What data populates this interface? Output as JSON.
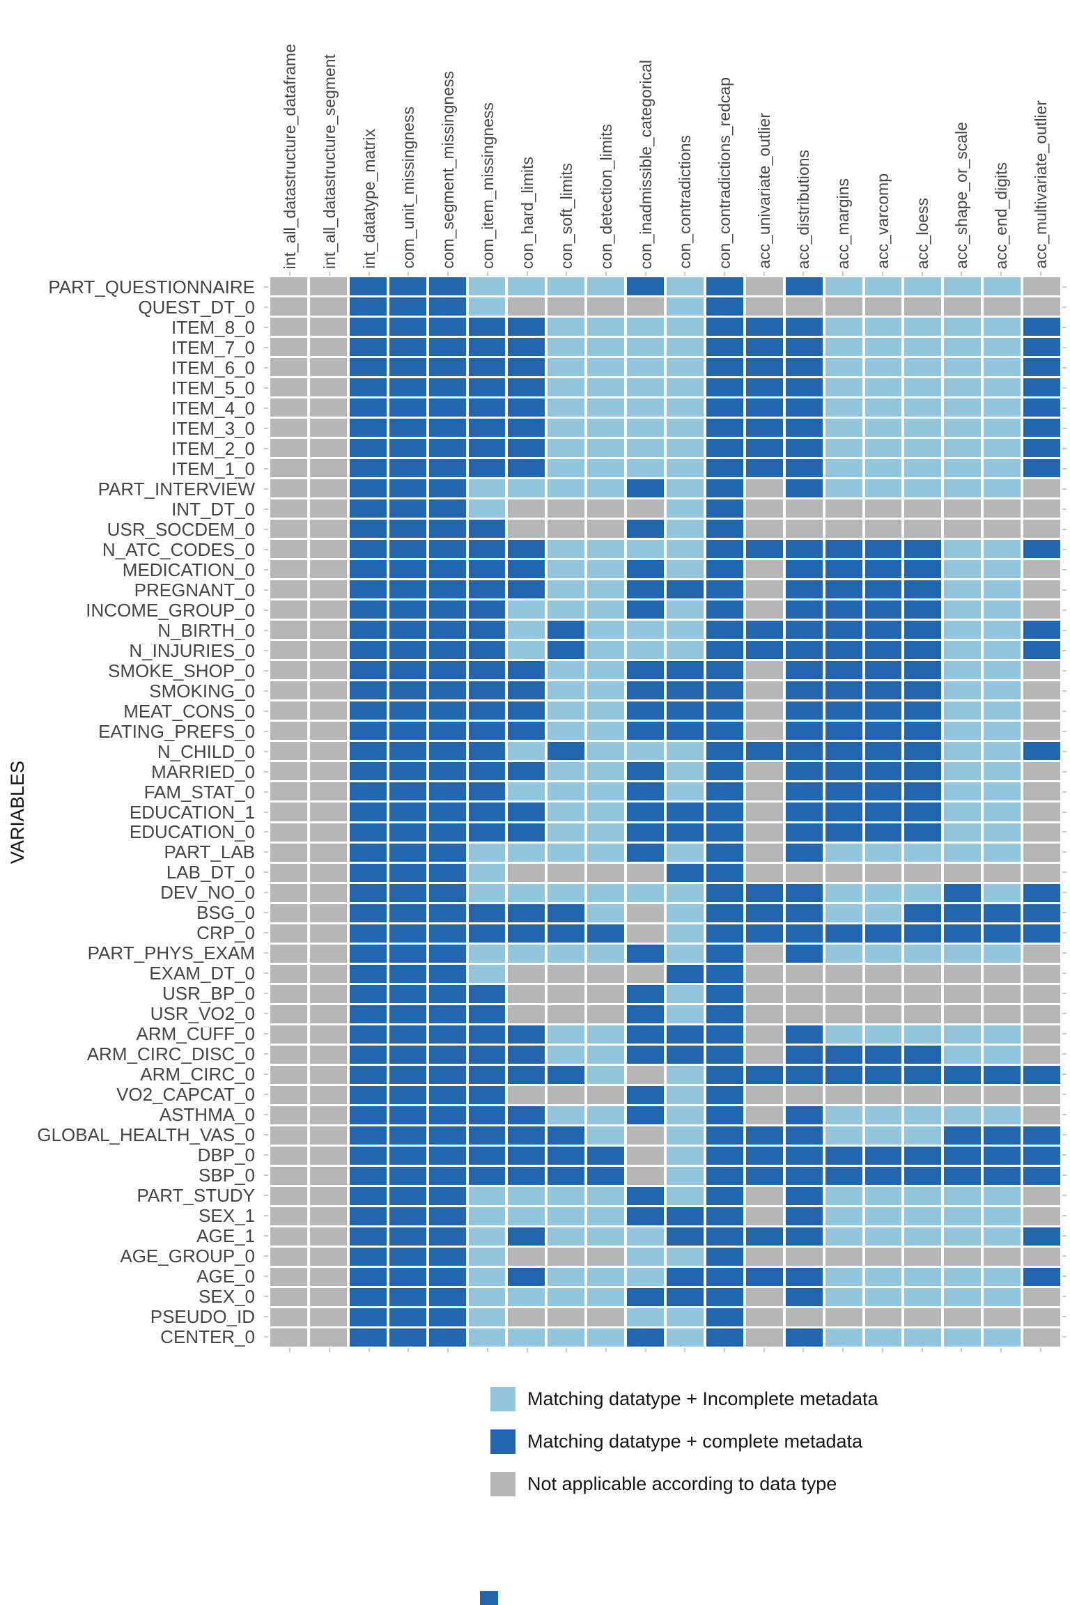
{
  "axis": {
    "y_title": "VARIABLES"
  },
  "chart_data": {
    "type": "heatmap",
    "title": "",
    "xlabel": "",
    "ylabel": "VARIABLES",
    "grid": false,
    "legend_position": "bottom",
    "n_cols": 20,
    "n_rows": 53,
    "columns": [
      "int_all_datastructure_dataframe",
      "int_all_datastructure_segment",
      "int_datatype_matrix",
      "com_unit_missingness",
      "com_segment_missingness",
      "com_item_missingness",
      "con_hard_limits",
      "con_soft_limits",
      "con_detection_limits",
      "con_inadmissible_categorical",
      "con_contradictions",
      "con_contradictions_redcap",
      "acc_univariate_outlier",
      "acc_distributions",
      "acc_margins",
      "acc_varcomp",
      "acc_loess",
      "acc_shape_or_scale",
      "acc_end_digits",
      "acc_multivariate_outlier"
    ],
    "rows": [
      "PART_QUESTIONNAIRE",
      "QUEST_DT_0",
      "ITEM_8_0",
      "ITEM_7_0",
      "ITEM_6_0",
      "ITEM_5_0",
      "ITEM_4_0",
      "ITEM_3_0",
      "ITEM_2_0",
      "ITEM_1_0",
      "PART_INTERVIEW",
      "INT_DT_0",
      "USR_SOCDEM_0",
      "N_ATC_CODES_0",
      "MEDICATION_0",
      "PREGNANT_0",
      "INCOME_GROUP_0",
      "N_BIRTH_0",
      "N_INJURIES_0",
      "SMOKE_SHOP_0",
      "SMOKING_0",
      "MEAT_CONS_0",
      "EATING_PREFS_0",
      "N_CHILD_0",
      "MARRIED_0",
      "FAM_STAT_0",
      "EDUCATION_1",
      "EDUCATION_0",
      "PART_LAB",
      "LAB_DT_0",
      "DEV_NO_0",
      "BSG_0",
      "CRP_0",
      "PART_PHYS_EXAM",
      "EXAM_DT_0",
      "USR_BP_0",
      "USR_VO2_0",
      "ARM_CUFF_0",
      "ARM_CIRC_DISC_0",
      "ARM_CIRC_0",
      "VO2_CAPCAT_0",
      "ASTHMA_0",
      "GLOBAL_HEALTH_VAS_0",
      "DBP_0",
      "SBP_0",
      "PART_STUDY",
      "SEX_1",
      "AGE_1",
      "AGE_GROUP_0",
      "AGE_0",
      "SEX_0",
      "PSEUDO_ID",
      "CENTER_0"
    ],
    "code_legend": {
      "L": "Matching datatype + Incomplete metadata",
      "D": "Matching datatype + complete metadata",
      "G": "Not applicable according to data type"
    },
    "palette": {
      "L": "#92C5DE",
      "D": "#2166AC",
      "G": "#B6B6B6"
    },
    "cell_codes": [
      "GGDDDLLLLDLDGDLLLLLG",
      "GGDDDLGGGGLDGGGGGGGG",
      "GGDDDDDLLLLDDDLLLLLD",
      "GGDDDDDLLLLDDDLLLLLD",
      "GGDDDDDLLLLDDDLLLLLD",
      "GGDDDDDLLLLDDDLLLLLD",
      "GGDDDDDLLLLDDDLLLLLD",
      "GGDDDDDLLLLDDDLLLLLD",
      "GGDDDDDLLLLDDDLLLLLD",
      "GGDDDDDLLLLDDDLLLLLD",
      "GGDDDLLLLDLDGDLLLLLG",
      "GGDDDLGGGGLDGGGGGGGG",
      "GGDDDDGGGDLDGGGGGGGG",
      "GGDDDDDLLLLDDDDDDLLD",
      "GGDDDDDLLDLDGDDDDLLG",
      "GGDDDDDLLDDDGDDDDLLG",
      "GGDDDDLLLDLDGDDDDLLG",
      "GGDDDDLDLLLDDDDDDLLD",
      "GGDDDDLDLLLDDDDDDLLD",
      "GGDDDDDLLDDDGDDDDLLG",
      "GGDDDDDLLDDDGDDDDLLG",
      "GGDDDDDLLDDDGDDDDLLG",
      "GGDDDDDLLDDDGDDDDLLG",
      "GGDDDDLDLLLDDDDDDLLD",
      "GGDDDDDLLDLDGDDDDLLG",
      "GGDDDDLLLDLDGDDDDLLG",
      "GGDDDDDLLDDDGDDDDLLG",
      "GGDDDDDLLDDDGDDDDLLG",
      "GGDDDLLLLDLDGDLLLLLG",
      "GGDDDLGGGGDDGGGGGGGG",
      "GGDDDLLLLLLDDDLLLDLD",
      "GGDDDDDDLGLDDDLLDDDD",
      "GGDDDDDDDGLDDDDDDDDD",
      "GGDDDLLLLDLDGDLLLLLG",
      "GGDDDLGGGGDDGGGGGGGG",
      "GGDDDDGGGDLDGGGGGGGG",
      "GGDDDDGGGDLDGGGGGGGG",
      "GGDDDDDLLDDDGDLLLLLG",
      "GGDDDDDLLDDDGDDDDLLG",
      "GGDDDDDDLGLDDDDDDDDD",
      "GGDDDDGGGDLDGGGGGGGG",
      "GGDDDDDLLDLDGDLLLLLG",
      "GGDDDDDDLGLDDDLLLDDD",
      "GGDDDDDDDGLDDDDDDDDD",
      "GGDDDDDDDGLDDDDDDDDD",
      "GGDDDLLLLDLDGDLLLLLG",
      "GGDDDLLLLDDDGDLLLLLG",
      "GGDDDLDLLLDDDDLLLLLD",
      "GGDDDLGGGLLDGGGGGGGG",
      "GGDDDLDLLLDDDDLLLLLD",
      "GGDDDLLLLDDDGDLLLLLG",
      "GGDDDLGGGLLDGGGGGGGG",
      "GGDDDLLLLDLDGDLLLLLG"
    ]
  },
  "legend": {
    "items": [
      {
        "code": "L",
        "label": "Matching datatype + Incomplete metadata",
        "color": "#92C5DE"
      },
      {
        "code": "D",
        "label": "Matching datatype + complete metadata",
        "color": "#2166AC"
      },
      {
        "code": "G",
        "label": "Not applicable according to data type",
        "color": "#B6B6B6"
      }
    ],
    "overflow_swatch_color": "#2166AC"
  }
}
